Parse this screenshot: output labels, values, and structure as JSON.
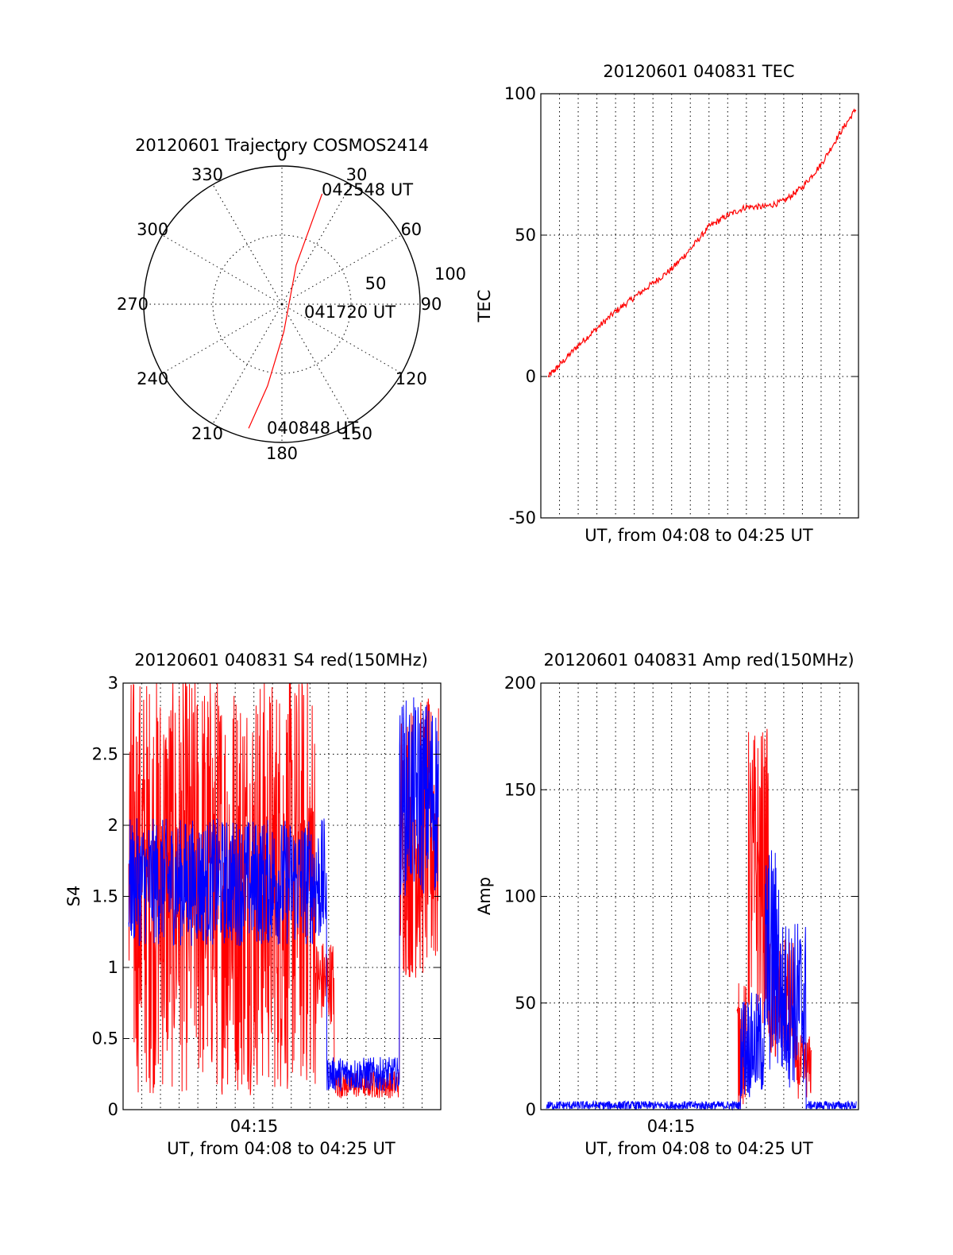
{
  "chart_data": [
    {
      "id": "trajectory",
      "type": "polar",
      "title": "20120601 Trajectory COSMOS2414",
      "angle_labels": [
        "0",
        "30",
        "60",
        "90",
        "120",
        "150",
        "180",
        "210",
        "240",
        "270",
        "300",
        "330"
      ],
      "radius_labels": [
        "50",
        "100"
      ],
      "radius_max": 100,
      "track": {
        "color": "#ff0000",
        "points": [
          {
            "az": 195,
            "zenith_dist": 93
          },
          {
            "az": 190,
            "zenith_dist": 60
          },
          {
            "az": 176,
            "zenith_dist": 20
          },
          {
            "az": 20,
            "zenith_dist": 30
          },
          {
            "az": 20,
            "zenith_dist": 85
          }
        ]
      },
      "annotations": [
        {
          "text": "042548 UT",
          "az": 23,
          "zenith_dist": 86
        },
        {
          "text": "041720 UT",
          "az": 95,
          "zenith_dist": 35
        },
        {
          "text": "040848 UT",
          "az": 184,
          "zenith_dist": 95
        }
      ]
    },
    {
      "id": "tec",
      "type": "line",
      "title": "20120601 040831 TEC",
      "xlabel": "UT, from 04:08 to 04:25 UT",
      "ylabel": "TEC",
      "ylim": [
        -50,
        100
      ],
      "yticks": [
        "-50",
        "0",
        "50",
        "100"
      ],
      "x_minutes": [
        0.4,
        1,
        2,
        3,
        4,
        5,
        6,
        7,
        8,
        9,
        10,
        11,
        12,
        13,
        14,
        15,
        16,
        16.9
      ],
      "series": [
        {
          "color": "#ff0000",
          "values": [
            0,
            4,
            11,
            17,
            23,
            28,
            33,
            38,
            45,
            53,
            57,
            60,
            60,
            62,
            67,
            75,
            86,
            95
          ]
        }
      ]
    },
    {
      "id": "s4",
      "type": "line",
      "title": "20120601 040831 S4 red(150MHz)",
      "xlabel": "UT, from 04:08 to 04:25 UT",
      "ylabel": "S4",
      "ylim": [
        0,
        3
      ],
      "yticks": [
        "0",
        "0.5",
        "1",
        "1.5",
        "2",
        "2.5",
        "3"
      ],
      "xticks": [
        {
          "label": "04:15",
          "minute": 7.5
        }
      ],
      "series": [
        {
          "name": "red",
          "color": "#ff0000",
          "segments": [
            {
              "x0": 0.3,
              "x1": 10.3,
              "base": 1.6,
              "noise": 1.5
            },
            {
              "x0": 10.3,
              "x1": 11.3,
              "base": 0.9,
              "noise": 0.3
            },
            {
              "x0": 11.3,
              "x1": 14.8,
              "base": 0.18,
              "noise": 0.1
            },
            {
              "x0": 14.8,
              "x1": 16.9,
              "base": 1.9,
              "noise": 1.0
            }
          ]
        },
        {
          "name": "blue",
          "color": "#0000ff",
          "segments": [
            {
              "x0": 0.3,
              "x1": 10.9,
              "base": 1.6,
              "noise": 0.45
            },
            {
              "x0": 10.9,
              "x1": 14.8,
              "base": 0.25,
              "noise": 0.12
            },
            {
              "x0": 14.8,
              "x1": 16.9,
              "base": 2.2,
              "noise": 0.7
            }
          ]
        }
      ]
    },
    {
      "id": "amp",
      "type": "line",
      "title": "20120601 040831 Amp red(150MHz)",
      "xlabel": "UT, from 04:08 to 04:25 UT",
      "ylabel": "Amp",
      "ylim": [
        0,
        200
      ],
      "yticks": [
        "0",
        "50",
        "100",
        "150",
        "200"
      ],
      "xticks": [
        {
          "label": "04:15",
          "minute": 7.5
        }
      ],
      "series": [
        {
          "name": "red",
          "color": "#ff0000",
          "segments": [
            {
              "x0": 10.5,
              "x1": 11.1,
              "base": 30,
              "noise": 30
            },
            {
              "x0": 11.1,
              "x1": 12.2,
              "base": 110,
              "noise": 70
            },
            {
              "x0": 12.2,
              "x1": 13.6,
              "base": 50,
              "noise": 30
            },
            {
              "x0": 13.6,
              "x1": 14.5,
              "base": 20,
              "noise": 15
            }
          ]
        },
        {
          "name": "blue",
          "color": "#0000ff",
          "segments": [
            {
              "x0": 0.3,
              "x1": 10.7,
              "base": 2,
              "noise": 2
            },
            {
              "x0": 10.7,
              "x1": 12.0,
              "base": 30,
              "noise": 25
            },
            {
              "x0": 12.0,
              "x1": 12.8,
              "base": 70,
              "noise": 55
            },
            {
              "x0": 12.8,
              "x1": 14.2,
              "base": 50,
              "noise": 40
            },
            {
              "x0": 14.2,
              "x1": 16.9,
              "base": 2,
              "noise": 2
            }
          ]
        }
      ]
    }
  ]
}
